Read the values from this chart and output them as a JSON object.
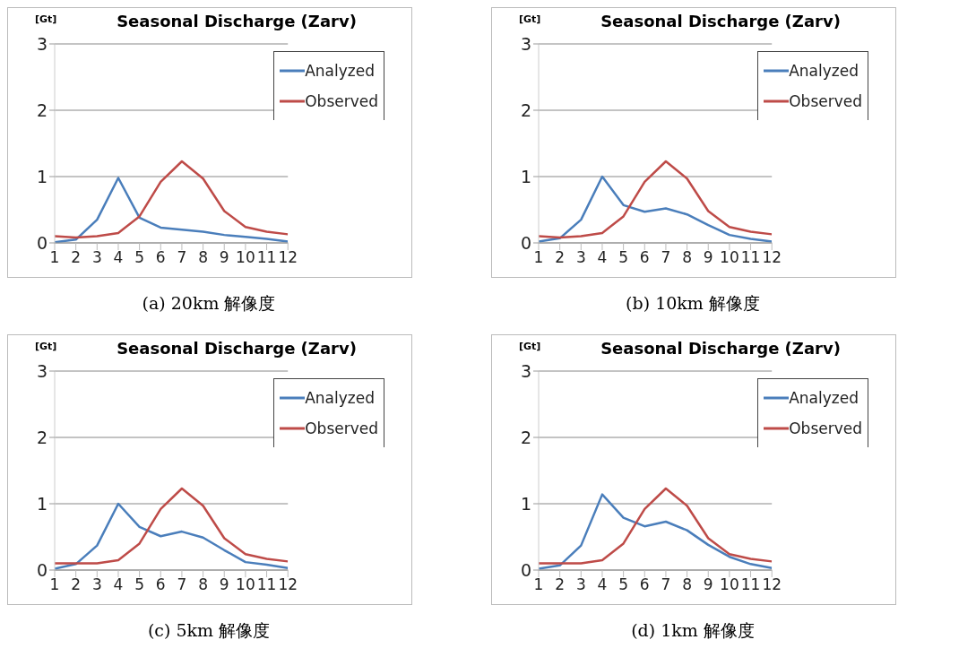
{
  "chart_data": [
    {
      "type": "line",
      "title": "Seasonal Discharge (Zarv)",
      "ylabel": "[Gt]",
      "annotations": [
        "(a) 20km 解像度"
      ],
      "x": [
        1,
        2,
        3,
        4,
        5,
        6,
        7,
        8,
        9,
        10,
        11,
        12
      ],
      "xlim": [
        1,
        12
      ],
      "xticks": [
        1,
        2,
        3,
        4,
        5,
        6,
        7,
        8,
        9,
        10,
        11,
        12
      ],
      "ylim": [
        0,
        3
      ],
      "yticks": [
        0,
        1,
        2,
        3
      ],
      "grid": "y",
      "legend": "top right",
      "marker": "none",
      "line_style": "solid",
      "series": [
        {
          "name": "Analyzed",
          "color": "#4a7ebb",
          "values": [
            0.01,
            0.05,
            0.35,
            0.98,
            0.38,
            0.23,
            0.2,
            0.17,
            0.12,
            0.09,
            0.06,
            0.02
          ]
        },
        {
          "name": "Observed",
          "color": "#be4b48",
          "values": [
            0.1,
            0.08,
            0.1,
            0.15,
            0.4,
            0.92,
            1.23,
            0.97,
            0.48,
            0.24,
            0.17,
            0.13
          ]
        }
      ]
    },
    {
      "type": "line",
      "title": "Seasonal Discharge (Zarv)",
      "ylabel": "[Gt]",
      "annotations": [
        "(b) 10km 解像度"
      ],
      "x": [
        1,
        2,
        3,
        4,
        5,
        6,
        7,
        8,
        9,
        10,
        11,
        12
      ],
      "xlim": [
        1,
        12
      ],
      "xticks": [
        1,
        2,
        3,
        4,
        5,
        6,
        7,
        8,
        9,
        10,
        11,
        12
      ],
      "ylim": [
        0,
        3
      ],
      "yticks": [
        0,
        1,
        2,
        3
      ],
      "grid": "y",
      "legend": "top right",
      "marker": "none",
      "line_style": "solid",
      "series": [
        {
          "name": "Analyzed",
          "color": "#4a7ebb",
          "values": [
            0.02,
            0.07,
            0.35,
            1.0,
            0.57,
            0.47,
            0.52,
            0.43,
            0.27,
            0.12,
            0.06,
            0.02
          ]
        },
        {
          "name": "Observed",
          "color": "#be4b48",
          "values": [
            0.1,
            0.08,
            0.1,
            0.15,
            0.4,
            0.92,
            1.23,
            0.97,
            0.48,
            0.24,
            0.17,
            0.13
          ]
        }
      ]
    },
    {
      "type": "line",
      "title": "Seasonal Discharge (Zarv)",
      "ylabel": "[Gt]",
      "annotations": [
        "(c) 5km 解像度"
      ],
      "x": [
        1,
        2,
        3,
        4,
        5,
        6,
        7,
        8,
        9,
        10,
        11,
        12
      ],
      "xlim": [
        1,
        12
      ],
      "xticks": [
        1,
        2,
        3,
        4,
        5,
        6,
        7,
        8,
        9,
        10,
        11,
        12
      ],
      "ylim": [
        0,
        3
      ],
      "yticks": [
        0,
        1,
        2,
        3
      ],
      "grid": "y",
      "legend": "top right",
      "marker": "none",
      "line_style": "solid",
      "series": [
        {
          "name": "Analyzed",
          "color": "#4a7ebb",
          "values": [
            0.02,
            0.09,
            0.37,
            1.0,
            0.65,
            0.51,
            0.58,
            0.49,
            0.3,
            0.12,
            0.08,
            0.03
          ]
        },
        {
          "name": "Observed",
          "color": "#be4b48",
          "values": [
            0.1,
            0.1,
            0.1,
            0.15,
            0.4,
            0.92,
            1.23,
            0.97,
            0.48,
            0.24,
            0.17,
            0.13
          ]
        }
      ]
    },
    {
      "type": "line",
      "title": "Seasonal Discharge (Zarv)",
      "ylabel": "[Gt]",
      "annotations": [
        "(d) 1km 解像度"
      ],
      "x": [
        1,
        2,
        3,
        4,
        5,
        6,
        7,
        8,
        9,
        10,
        11,
        12
      ],
      "xlim": [
        1,
        12
      ],
      "xticks": [
        1,
        2,
        3,
        4,
        5,
        6,
        7,
        8,
        9,
        10,
        11,
        12
      ],
      "ylim": [
        0,
        3
      ],
      "yticks": [
        0,
        1,
        2,
        3
      ],
      "grid": "y",
      "legend": "top right",
      "marker": "none",
      "line_style": "solid",
      "series": [
        {
          "name": "Analyzed",
          "color": "#4a7ebb",
          "values": [
            0.02,
            0.07,
            0.37,
            1.14,
            0.79,
            0.66,
            0.73,
            0.6,
            0.38,
            0.2,
            0.09,
            0.03
          ]
        },
        {
          "name": "Observed",
          "color": "#be4b48",
          "values": [
            0.1,
            0.1,
            0.1,
            0.15,
            0.4,
            0.92,
            1.23,
            0.97,
            0.48,
            0.24,
            0.17,
            0.13
          ]
        }
      ]
    }
  ]
}
